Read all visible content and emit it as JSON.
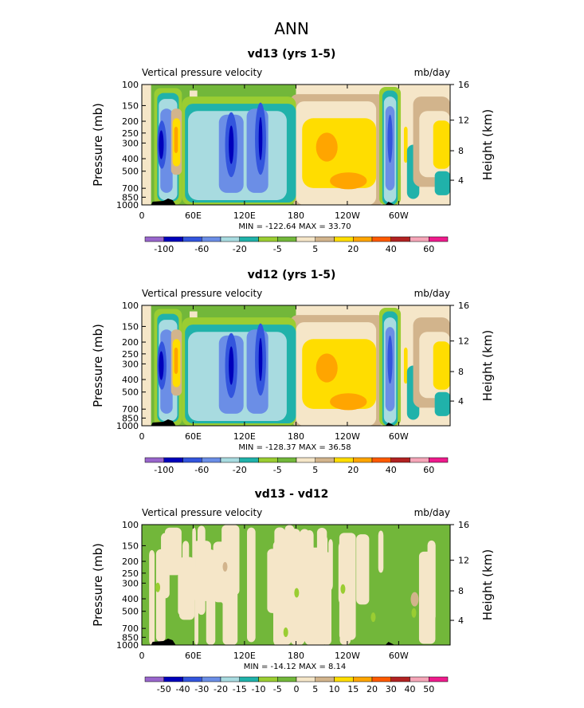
{
  "page_title": "ANN",
  "colors": {
    "frame": "#000000",
    "topography": "#000000"
  },
  "chart_data": [
    {
      "type": "heatmap",
      "title": "vd13 (yrs 1-5)",
      "subtitle_left": "Vertical pressure velocity",
      "subtitle_right": "mb/day",
      "ylabel": "Pressure (mb)",
      "ylabel_right": "Height (km)",
      "y_ticks": [
        "100",
        "150",
        "200",
        "250",
        "300",
        "400",
        "500",
        "700",
        "850",
        "1000"
      ],
      "y_right_ticks": [
        "16",
        "12",
        "8",
        "4"
      ],
      "x_ticks": [
        "0",
        "60E",
        "120E",
        "180",
        "120W",
        "60W"
      ],
      "stats": "MIN = -122.64   MAX =  33.70",
      "colorbar_labels": [
        "-100",
        "-60",
        "-20",
        "-5",
        "5",
        "20",
        "40",
        "60"
      ],
      "colorbar_colors": [
        "#9966cc",
        "#0000bb",
        "#3355dd",
        "#6b8ee6",
        "#a8dbe0",
        "#20b2aa",
        "#9acd32",
        "#72b73a",
        "#f5e6c8",
        "#d2b48c",
        "#ffdd00",
        "#ffa500",
        "#ff5a00",
        "#b22222",
        "#f5a6b8",
        "#ee1b8c"
      ]
    },
    {
      "type": "heatmap",
      "title": "vd12 (yrs 1-5)",
      "subtitle_left": "Vertical pressure velocity",
      "subtitle_right": "mb/day",
      "ylabel": "Pressure (mb)",
      "ylabel_right": "Height (km)",
      "y_ticks": [
        "100",
        "150",
        "200",
        "250",
        "300",
        "400",
        "500",
        "700",
        "850",
        "1000"
      ],
      "y_right_ticks": [
        "16",
        "12",
        "8",
        "4"
      ],
      "x_ticks": [
        "0",
        "60E",
        "120E",
        "180",
        "120W",
        "60W"
      ],
      "stats": "MIN = -128.37   MAX =  36.58",
      "colorbar_labels": [
        "-100",
        "-60",
        "-20",
        "-5",
        "5",
        "20",
        "40",
        "60"
      ],
      "colorbar_colors": [
        "#9966cc",
        "#0000bb",
        "#3355dd",
        "#6b8ee6",
        "#a8dbe0",
        "#20b2aa",
        "#9acd32",
        "#72b73a",
        "#f5e6c8",
        "#d2b48c",
        "#ffdd00",
        "#ffa500",
        "#ff5a00",
        "#b22222",
        "#f5a6b8",
        "#ee1b8c"
      ]
    },
    {
      "type": "heatmap",
      "title": "vd13 - vd12",
      "subtitle_left": "Vertical pressure velocity",
      "subtitle_right": "mb/day",
      "ylabel": "Pressure (mb)",
      "ylabel_right": "Height (km)",
      "y_ticks": [
        "100",
        "150",
        "200",
        "250",
        "300",
        "400",
        "500",
        "700",
        "850",
        "1000"
      ],
      "y_right_ticks": [
        "16",
        "12",
        "8",
        "4"
      ],
      "x_ticks": [
        "0",
        "60E",
        "120E",
        "180",
        "120W",
        "60W"
      ],
      "stats": "MIN = -14.12   MAX =   8.14",
      "colorbar_labels": [
        "-50",
        "-40",
        "-30",
        "-20",
        "-15",
        "-10",
        "-5",
        "0",
        "5",
        "10",
        "15",
        "20",
        "30",
        "40",
        "50"
      ],
      "colorbar_colors": [
        "#9966cc",
        "#0000bb",
        "#3355dd",
        "#6b8ee6",
        "#a8dbe0",
        "#20b2aa",
        "#9acd32",
        "#72b73a",
        "#f5e6c8",
        "#d2b48c",
        "#ffdd00",
        "#ffa500",
        "#ff5a00",
        "#b22222",
        "#f5a6b8",
        "#ee1b8c"
      ]
    }
  ]
}
